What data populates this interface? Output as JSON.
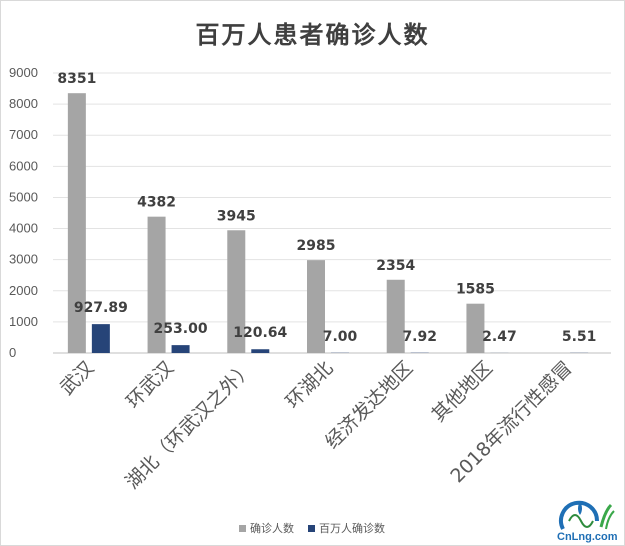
{
  "chart_data": {
    "type": "bar",
    "title": "百万人患者确诊人数",
    "categories": [
      "武汉",
      "环武汉",
      "湖北（环武汉之外）",
      "环湖北",
      "经济发达地区",
      "其他地区",
      "2018年流行性感冒"
    ],
    "series": [
      {
        "name": "确诊人数",
        "color": "#a5a5a5",
        "values": [
          8351,
          4382,
          3945,
          2985,
          2354,
          1585,
          null
        ],
        "labels": [
          "8351",
          "4382",
          "3945",
          "2985",
          "2354",
          "1585",
          ""
        ]
      },
      {
        "name": "百万人确诊数",
        "color": "#264478",
        "values": [
          927.89,
          253.0,
          120.64,
          7.0,
          7.92,
          2.47,
          5.51
        ],
        "labels": [
          "927.89",
          "253.00",
          "120.64",
          "7.00",
          "7.92",
          "2.47",
          "5.51"
        ]
      }
    ],
    "ylim": [
      0,
      9000
    ],
    "yticks": [
      "0",
      "1000",
      "2000",
      "3000",
      "4000",
      "5000",
      "6000",
      "7000",
      "8000",
      "9000"
    ],
    "grid": true,
    "legend_position": "bottom"
  },
  "logo": {
    "text": "CnLng.com"
  }
}
